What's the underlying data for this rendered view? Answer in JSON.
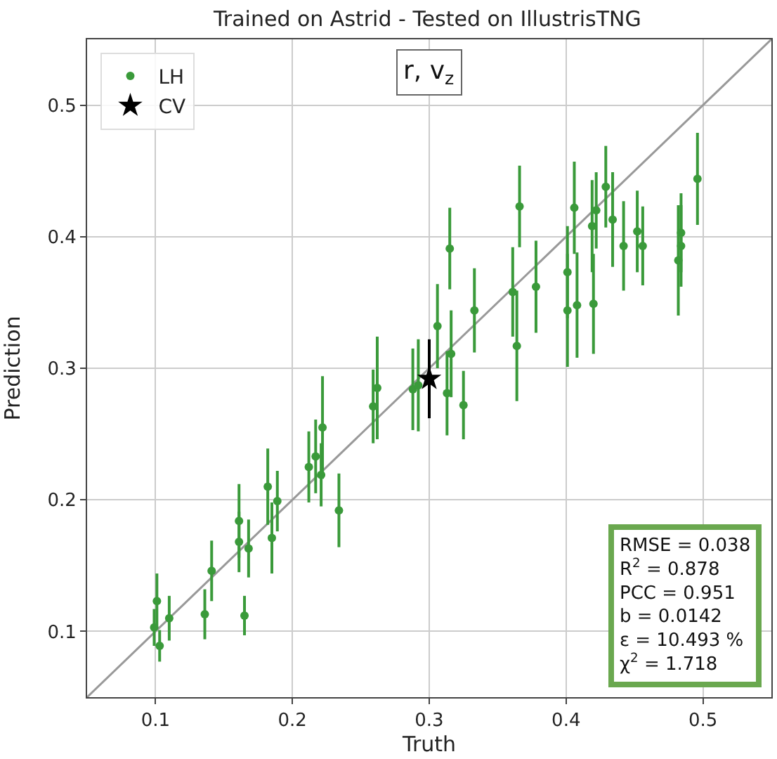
{
  "chart_data": {
    "type": "scatter",
    "title": "Trained on Astrid - Tested on IllustrisTNG",
    "xlabel": "Truth",
    "ylabel": "Prediction",
    "xlim": [
      0.05,
      0.55
    ],
    "ylim": [
      0.05,
      0.55
    ],
    "xticks": [
      0.1,
      0.2,
      0.3,
      0.4,
      0.5
    ],
    "yticks": [
      0.1,
      0.2,
      0.3,
      0.4,
      0.5
    ],
    "grid": true,
    "legend": "top left",
    "annotations": [
      "r, v$_{z}$",
      "RMSE = 0.038\nR$^{2}$ = 0.878\nPCC = 0.951\nb = 0.0142\nε = 10.493 %\nχ$^{2}$ = 1.718"
    ],
    "series": [
      {
        "type": "line",
        "color": "#999999",
        "marker": "none",
        "x": [
          0.05,
          0.55
        ],
        "values": [
          0.05,
          0.55
        ]
      },
      {
        "name": "LH",
        "color": "#3a9a3a",
        "marker": "circle",
        "x": [
          0.099,
          0.101,
          0.103,
          0.11,
          0.136,
          0.141,
          0.161,
          0.161,
          0.165,
          0.168,
          0.182,
          0.185,
          0.189,
          0.212,
          0.217,
          0.222,
          0.221,
          0.234,
          0.259,
          0.262,
          0.288,
          0.292,
          0.306,
          0.315,
          0.313,
          0.316,
          0.325,
          0.333,
          0.361,
          0.364,
          0.378,
          0.366,
          0.401,
          0.401,
          0.406,
          0.408,
          0.419,
          0.422,
          0.42,
          0.429,
          0.434,
          0.442,
          0.452,
          0.456,
          0.482,
          0.484,
          0.484,
          0.496
        ],
        "values": [
          0.103,
          0.123,
          0.089,
          0.11,
          0.113,
          0.146,
          0.184,
          0.168,
          0.112,
          0.163,
          0.21,
          0.171,
          0.199,
          0.225,
          0.233,
          0.255,
          0.219,
          0.192,
          0.271,
          0.285,
          0.284,
          0.287,
          0.332,
          0.391,
          0.281,
          0.311,
          0.272,
          0.344,
          0.358,
          0.317,
          0.362,
          0.423,
          0.373,
          0.344,
          0.422,
          0.348,
          0.408,
          0.42,
          0.349,
          0.438,
          0.413,
          0.393,
          0.404,
          0.393,
          0.382,
          0.403,
          0.393,
          0.444
        ],
        "errors": [
          0.014,
          0.021,
          0.012,
          0.017,
          0.019,
          0.023,
          0.028,
          0.023,
          0.015,
          0.022,
          0.029,
          0.027,
          0.023,
          0.027,
          0.028,
          0.039,
          0.024,
          0.028,
          0.028,
          0.039,
          0.031,
          0.035,
          0.032,
          0.031,
          0.032,
          0.033,
          0.026,
          0.032,
          0.034,
          0.042,
          0.035,
          0.031,
          0.035,
          0.043,
          0.035,
          0.04,
          0.035,
          0.029,
          0.038,
          0.031,
          0.036,
          0.034,
          0.031,
          0.03,
          0.042,
          0.03,
          0.031,
          0.035
        ]
      },
      {
        "name": "CV",
        "color": "#000000",
        "marker": "star",
        "x": [
          0.3
        ],
        "values": [
          0.292
        ],
        "errors": [
          0.03
        ]
      }
    ]
  }
}
